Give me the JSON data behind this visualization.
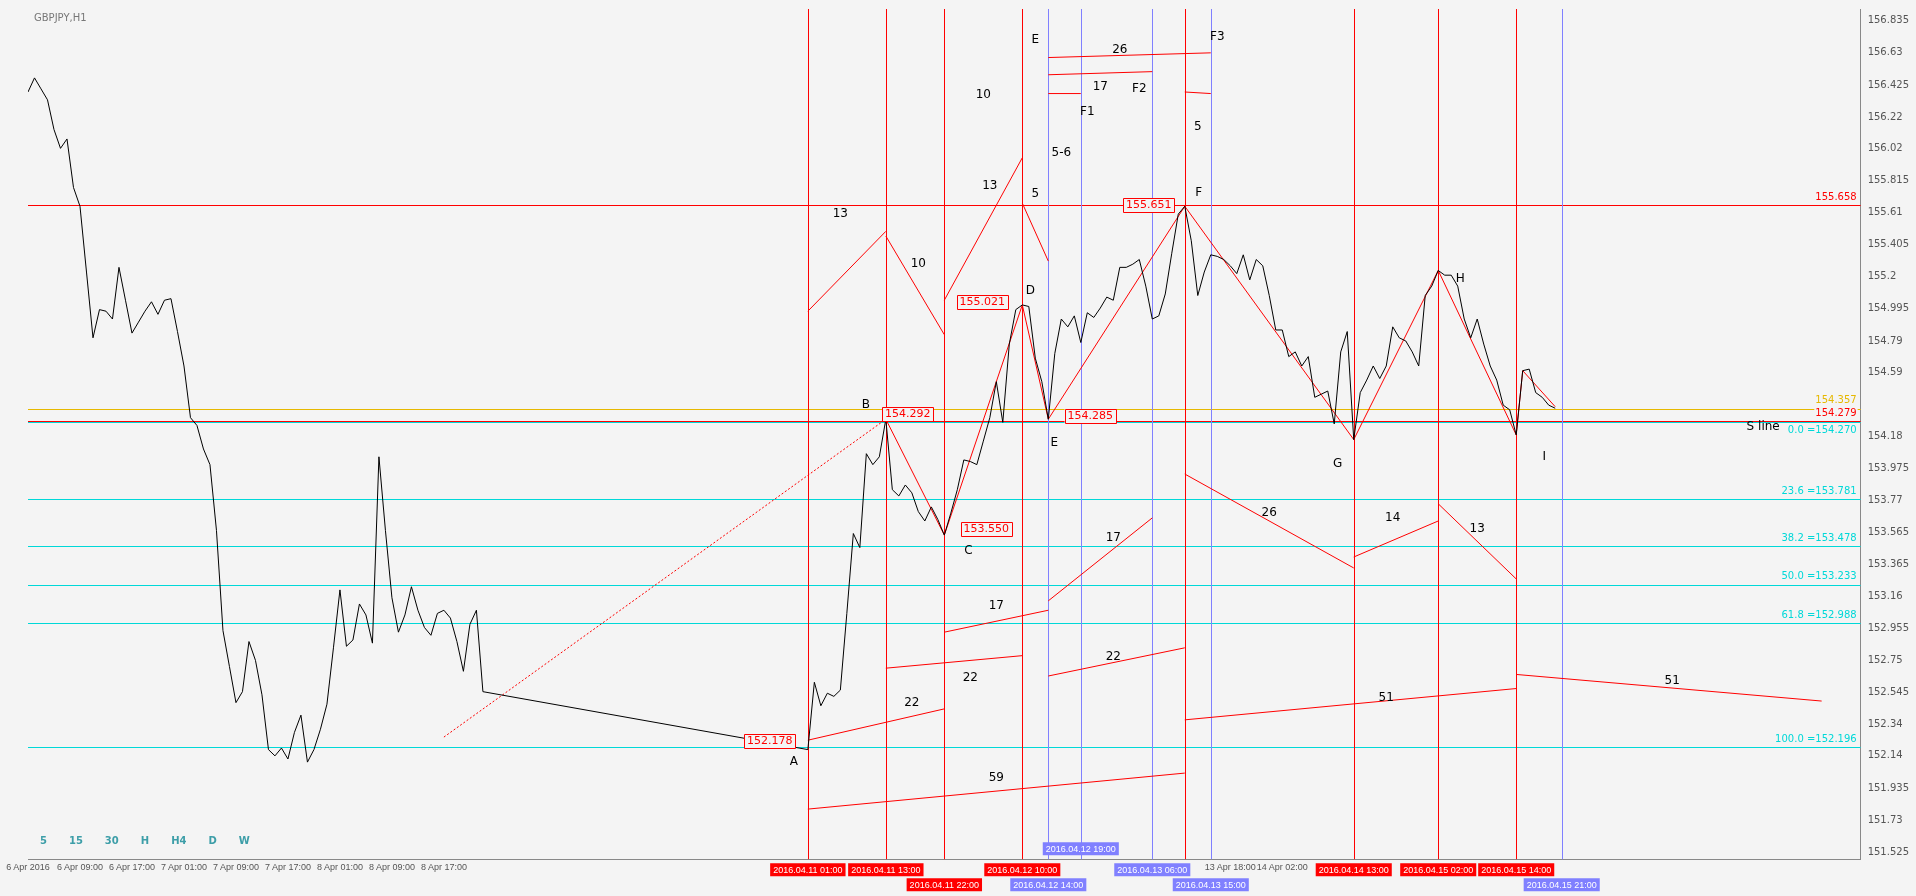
{
  "chart_data": {
    "type": "line",
    "title": "GBPJPY,H1",
    "grid": false,
    "legend": false,
    "xlim": [
      "2016-04-06T01:00",
      "2016-04-17T19:00"
    ],
    "ylim": [
      151.48,
      156.91
    ],
    "xticks": [
      {
        "value": "2016-04-06T01:00",
        "label": "6 Apr 2016"
      },
      {
        "value": "2016-04-06T09:00",
        "label": "6 Apr 09:00"
      },
      {
        "value": "2016-04-06T17:00",
        "label": "6 Apr 17:00"
      },
      {
        "value": "2016-04-07T01:00",
        "label": "7 Apr 01:00"
      },
      {
        "value": "2016-04-07T09:00",
        "label": "7 Apr 09:00"
      },
      {
        "value": "2016-04-07T17:00",
        "label": "7 Apr 17:00"
      },
      {
        "value": "2016-04-08T01:00",
        "label": "8 Apr 01:00"
      },
      {
        "value": "2016-04-08T09:00",
        "label": "8 Apr 09:00"
      },
      {
        "value": "2016-04-08T17:00",
        "label": "8 Apr 17:00"
      },
      {
        "value": "2016-04-13T18:00",
        "label": "13 Apr 18:00"
      },
      {
        "value": "2016-04-14T02:00",
        "label": "14 Apr 02:00"
      }
    ],
    "yticks": [
      156.835,
      156.63,
      156.425,
      156.22,
      156.02,
      155.815,
      155.61,
      155.405,
      155.2,
      154.995,
      154.79,
      154.59,
      154.18,
      153.975,
      153.77,
      153.565,
      153.365,
      153.16,
      152.955,
      152.75,
      152.545,
      152.34,
      152.14,
      151.935,
      151.73,
      151.525
    ],
    "x": [
      "2016-04-06T01:00",
      "2016-04-06T02:00",
      "2016-04-06T03:00",
      "2016-04-06T04:00",
      "2016-04-06T05:00",
      "2016-04-06T06:00",
      "2016-04-06T07:00",
      "2016-04-06T08:00",
      "2016-04-06T09:00",
      "2016-04-06T10:00",
      "2016-04-06T11:00",
      "2016-04-06T12:00",
      "2016-04-06T13:00",
      "2016-04-06T14:00",
      "2016-04-06T15:00",
      "2016-04-06T16:00",
      "2016-04-06T17:00",
      "2016-04-06T18:00",
      "2016-04-06T19:00",
      "2016-04-06T20:00",
      "2016-04-06T21:00",
      "2016-04-06T22:00",
      "2016-04-06T23:00",
      "2016-04-07T00:00",
      "2016-04-07T01:00",
      "2016-04-07T02:00",
      "2016-04-07T03:00",
      "2016-04-07T04:00",
      "2016-04-07T05:00",
      "2016-04-07T06:00",
      "2016-04-07T07:00",
      "2016-04-07T08:00",
      "2016-04-07T09:00",
      "2016-04-07T10:00",
      "2016-04-07T11:00",
      "2016-04-07T12:00",
      "2016-04-07T13:00",
      "2016-04-07T14:00",
      "2016-04-07T15:00",
      "2016-04-07T16:00",
      "2016-04-07T17:00",
      "2016-04-07T18:00",
      "2016-04-07T19:00",
      "2016-04-07T20:00",
      "2016-04-07T21:00",
      "2016-04-07T22:00",
      "2016-04-07T23:00",
      "2016-04-08T00:00",
      "2016-04-08T01:00",
      "2016-04-08T02:00",
      "2016-04-08T03:00",
      "2016-04-08T04:00",
      "2016-04-08T05:00",
      "2016-04-08T06:00",
      "2016-04-08T07:00",
      "2016-04-08T08:00",
      "2016-04-08T09:00",
      "2016-04-08T10:00",
      "2016-04-08T11:00",
      "2016-04-08T12:00",
      "2016-04-08T13:00",
      "2016-04-08T14:00",
      "2016-04-08T15:00",
      "2016-04-08T16:00",
      "2016-04-08T17:00",
      "2016-04-08T18:00",
      "2016-04-08T19:00",
      "2016-04-08T20:00",
      "2016-04-08T21:00",
      "2016-04-08T22:00",
      "2016-04-08T23:00",
      "2016-04-11T01:00",
      "2016-04-11T02:00",
      "2016-04-11T03:00",
      "2016-04-11T04:00",
      "2016-04-11T05:00",
      "2016-04-11T06:00",
      "2016-04-11T07:00",
      "2016-04-11T08:00",
      "2016-04-11T09:00",
      "2016-04-11T10:00",
      "2016-04-11T11:00",
      "2016-04-11T12:00",
      "2016-04-11T13:00",
      "2016-04-11T14:00",
      "2016-04-11T15:00",
      "2016-04-11T16:00",
      "2016-04-11T17:00",
      "2016-04-11T18:00",
      "2016-04-11T19:00",
      "2016-04-11T20:00",
      "2016-04-11T21:00",
      "2016-04-11T22:00",
      "2016-04-11T23:00",
      "2016-04-12T00:00",
      "2016-04-12T01:00",
      "2016-04-12T02:00",
      "2016-04-12T03:00",
      "2016-04-12T04:00",
      "2016-04-12T05:00",
      "2016-04-12T06:00",
      "2016-04-12T07:00",
      "2016-04-12T08:00",
      "2016-04-12T09:00",
      "2016-04-12T10:00",
      "2016-04-12T11:00",
      "2016-04-12T12:00",
      "2016-04-12T13:00",
      "2016-04-12T14:00",
      "2016-04-12T15:00",
      "2016-04-12T16:00",
      "2016-04-12T17:00",
      "2016-04-12T18:00",
      "2016-04-12T19:00",
      "2016-04-12T20:00",
      "2016-04-12T21:00",
      "2016-04-12T22:00",
      "2016-04-12T23:00",
      "2016-04-13T00:00",
      "2016-04-13T01:00",
      "2016-04-13T02:00",
      "2016-04-13T03:00",
      "2016-04-13T04:00",
      "2016-04-13T05:00",
      "2016-04-13T06:00",
      "2016-04-13T07:00",
      "2016-04-13T08:00",
      "2016-04-13T09:00",
      "2016-04-13T10:00",
      "2016-04-13T11:00",
      "2016-04-13T12:00",
      "2016-04-13T13:00",
      "2016-04-13T14:00",
      "2016-04-13T15:00",
      "2016-04-13T16:00",
      "2016-04-13T17:00",
      "2016-04-13T18:00",
      "2016-04-13T19:00",
      "2016-04-13T20:00",
      "2016-04-13T21:00",
      "2016-04-13T22:00",
      "2016-04-13T23:00",
      "2016-04-14T00:00",
      "2016-04-14T01:00",
      "2016-04-14T02:00",
      "2016-04-14T03:00",
      "2016-04-14T04:00",
      "2016-04-14T05:00",
      "2016-04-14T06:00",
      "2016-04-14T07:00",
      "2016-04-14T08:00",
      "2016-04-14T09:00",
      "2016-04-14T10:00",
      "2016-04-14T11:00",
      "2016-04-14T12:00",
      "2016-04-14T13:00",
      "2016-04-14T14:00",
      "2016-04-14T15:00",
      "2016-04-14T16:00",
      "2016-04-14T17:00",
      "2016-04-14T18:00",
      "2016-04-14T19:00",
      "2016-04-14T20:00",
      "2016-04-14T21:00",
      "2016-04-14T22:00",
      "2016-04-14T23:00",
      "2016-04-15T00:00",
      "2016-04-15T01:00",
      "2016-04-15T02:00",
      "2016-04-15T03:00",
      "2016-04-15T04:00",
      "2016-04-15T05:00",
      "2016-04-15T06:00",
      "2016-04-15T07:00",
      "2016-04-15T08:00",
      "2016-04-15T09:00",
      "2016-04-15T10:00",
      "2016-04-15T11:00",
      "2016-04-15T12:00",
      "2016-04-15T13:00",
      "2016-04-15T14:00",
      "2016-04-15T15:00",
      "2016-04-15T16:00",
      "2016-04-15T17:00",
      "2016-04-15T18:00",
      "2016-04-15T19:00",
      "2016-04-15T20:00"
    ],
    "series": [
      {
        "color": "#000000",
        "values": [
          156.38,
          156.47,
          156.4,
          156.33,
          156.14,
          156.02,
          156.08,
          155.77,
          155.65,
          155.23,
          154.81,
          154.99,
          154.98,
          154.93,
          155.26,
          155.05,
          154.84,
          154.91,
          154.98,
          155.04,
          154.96,
          155.05,
          155.06,
          154.85,
          154.63,
          154.3,
          154.25,
          154.1,
          154.0,
          153.58,
          152.94,
          152.71,
          152.48,
          152.55,
          152.87,
          152.75,
          152.53,
          152.18,
          152.14,
          152.19,
          152.12,
          152.29,
          152.4,
          152.1,
          152.18,
          152.31,
          152.47,
          152.83,
          153.2,
          152.84,
          152.88,
          153.11,
          153.04,
          152.86,
          154.05,
          153.58,
          153.15,
          152.93,
          153.04,
          153.22,
          153.07,
          152.96,
          152.91,
          153.05,
          153.07,
          153.02,
          152.87,
          152.68,
          152.98,
          153.07,
          152.55,
          152.18,
          152.61,
          152.46,
          152.54,
          152.52,
          152.56,
          153.05,
          153.56,
          153.47,
          154.07,
          154.0,
          154.05,
          154.29,
          153.84,
          153.8,
          153.87,
          153.82,
          153.7,
          153.64,
          153.73,
          153.65,
          153.55,
          153.69,
          153.84,
          154.03,
          154.02,
          154.0,
          154.15,
          154.3,
          154.53,
          154.27,
          154.77,
          154.99,
          155.02,
          155.01,
          154.68,
          154.53,
          154.29,
          154.71,
          154.93,
          154.88,
          154.95,
          154.78,
          154.97,
          154.94,
          155.0,
          155.07,
          155.05,
          155.26,
          155.26,
          155.28,
          155.31,
          155.14,
          154.93,
          154.95,
          155.09,
          155.35,
          155.6,
          155.65,
          155.43,
          155.08,
          155.23,
          155.34,
          155.33,
          155.31,
          155.27,
          155.22,
          155.34,
          155.18,
          155.31,
          155.27,
          155.08,
          154.86,
          154.86,
          154.69,
          154.72,
          154.63,
          154.69,
          154.43,
          154.45,
          154.47,
          154.26,
          154.72,
          154.85,
          154.16,
          154.46,
          154.54,
          154.63,
          154.55,
          154.63,
          154.88,
          154.81,
          154.79,
          154.72,
          154.63,
          155.08,
          155.14,
          155.24,
          155.21,
          155.21,
          155.14,
          154.93,
          154.81,
          154.93,
          154.77,
          154.63,
          154.54,
          154.38,
          154.35,
          154.19,
          154.6,
          154.61,
          154.46,
          154.43,
          154.38,
          154.36
        ]
      },
      {
        "color": "#ff0000",
        "x": [
          "2016-04-11T13:00",
          "2016-04-11T22:00",
          "2016-04-12T10:00",
          "2016-04-12T14:00",
          "2016-04-13T11:00",
          "2016-04-14T13:00",
          "2016-04-15T02:00",
          "2016-04-15T14:00",
          "2016-04-15T15:00",
          "2016-04-15T20:00"
        ],
        "values": [
          154.29,
          153.55,
          155.02,
          154.29,
          155.65,
          154.16,
          155.24,
          154.19,
          154.6,
          154.37
        ]
      },
      {
        "color": "#ff0000",
        "line_style": "dotted",
        "x": [
          "2016-04-08T17:00",
          "2016-04-11T13:00"
        ],
        "values": [
          152.26,
          154.29
        ]
      },
      {
        "color": "#ff0000",
        "x": [
          "2016-04-11T01:00",
          "2016-04-11T13:00"
        ],
        "values": [
          154.98,
          155.49
        ]
      },
      {
        "color": "#ff0000",
        "x": [
          "2016-04-11T13:00",
          "2016-04-11T22:00"
        ],
        "values": [
          155.46,
          154.83
        ]
      },
      {
        "color": "#ff0000",
        "x": [
          "2016-04-11T22:00",
          "2016-04-12T10:00"
        ],
        "values": [
          155.05,
          155.96
        ]
      },
      {
        "color": "#ff0000",
        "x": [
          "2016-04-12T10:00",
          "2016-04-12T14:00"
        ],
        "values": [
          155.67,
          155.3
        ]
      },
      {
        "color": "#ff0000",
        "x": [
          "2016-04-12T14:00",
          "2016-04-13T15:00"
        ],
        "values": [
          156.6,
          156.63
        ]
      },
      {
        "color": "#ff0000",
        "x": [
          "2016-04-12T14:00",
          "2016-04-13T06:00"
        ],
        "values": [
          156.49,
          156.51
        ]
      },
      {
        "color": "#ff0000",
        "x": [
          "2016-04-12T14:00",
          "2016-04-12T19:00"
        ],
        "values": [
          156.37,
          156.37
        ]
      },
      {
        "color": "#ff0000",
        "x": [
          "2016-04-13T11:00",
          "2016-04-13T15:00"
        ],
        "values": [
          156.38,
          156.37
        ]
      },
      {
        "color": "#ff0000",
        "x": [
          "2016-04-11T01:00",
          "2016-04-11T22:00"
        ],
        "values": [
          152.24,
          152.44
        ]
      },
      {
        "color": "#ff0000",
        "x": [
          "2016-04-11T13:00",
          "2016-04-12T10:00"
        ],
        "values": [
          152.7,
          152.78
        ]
      },
      {
        "color": "#ff0000",
        "x": [
          "2016-04-11T22:00",
          "2016-04-12T14:00"
        ],
        "values": [
          152.93,
          153.07
        ]
      },
      {
        "color": "#ff0000",
        "x": [
          "2016-04-12T14:00",
          "2016-04-13T06:00"
        ],
        "values": [
          153.13,
          153.66
        ]
      },
      {
        "color": "#ff0000",
        "x": [
          "2016-04-12T14:00",
          "2016-04-13T11:00"
        ],
        "values": [
          152.65,
          152.83
        ]
      },
      {
        "color": "#ff0000",
        "x": [
          "2016-04-11T01:00",
          "2016-04-13T11:00"
        ],
        "values": [
          151.8,
          152.03
        ]
      },
      {
        "color": "#ff0000",
        "x": [
          "2016-04-13T11:00",
          "2016-04-14T13:00"
        ],
        "values": [
          153.94,
          153.34
        ]
      },
      {
        "color": "#ff0000",
        "x": [
          "2016-04-14T13:00",
          "2016-04-15T02:00"
        ],
        "values": [
          153.41,
          153.64
        ]
      },
      {
        "color": "#ff0000",
        "x": [
          "2016-04-15T02:00",
          "2016-04-15T14:00"
        ],
        "values": [
          153.75,
          153.27
        ]
      },
      {
        "color": "#ff0000",
        "x": [
          "2016-04-13T11:00",
          "2016-04-15T14:00"
        ],
        "values": [
          152.37,
          152.57
        ]
      },
      {
        "color": "#ff0000",
        "x": [
          "2016-04-15T14:00",
          "2016-04-17T13:00"
        ],
        "values": [
          152.66,
          152.49
        ]
      }
    ],
    "ref_lines": [
      {
        "axis": "y",
        "value": 155.658,
        "label": "155.658",
        "color": "#ff0000"
      },
      {
        "axis": "y",
        "value": 154.357,
        "label": "154.357",
        "color": "#e6b800"
      },
      {
        "axis": "y",
        "value": 154.279,
        "label": "154.279",
        "color": "#ff0000"
      },
      {
        "axis": "y",
        "value": 154.27,
        "label": "0.0 =154.270",
        "color": "#00d8d8"
      },
      {
        "axis": "y",
        "value": 153.781,
        "label": "23.6 =153.781",
        "color": "#00d8d8"
      },
      {
        "axis": "y",
        "value": 153.478,
        "label": "38.2 =153.478",
        "color": "#00d8d8"
      },
      {
        "axis": "y",
        "value": 153.233,
        "label": "50.0 =153.233",
        "color": "#00d8d8"
      },
      {
        "axis": "y",
        "value": 152.988,
        "label": "61.8 =152.988",
        "color": "#00d8d8"
      },
      {
        "axis": "y",
        "value": 152.196,
        "label": "100.0 =152.196",
        "color": "#00d8d8"
      },
      {
        "axis": "x",
        "value": "2016-04-11T01:00",
        "label": "2016.04.11 01:00",
        "color": "#ff0000"
      },
      {
        "axis": "x",
        "value": "2016-04-11T13:00",
        "label": "2016.04.11 13:00",
        "color": "#ff0000"
      },
      {
        "axis": "x",
        "value": "2016-04-11T22:00",
        "label": "2016.04.11 22:00",
        "color": "#ff0000"
      },
      {
        "axis": "x",
        "value": "2016-04-12T10:00",
        "label": "2016.04.12 10:00",
        "color": "#ff0000"
      },
      {
        "axis": "x",
        "value": "2016-04-12T14:00",
        "label": "2016.04.12 14:00",
        "color": "#8080ff"
      },
      {
        "axis": "x",
        "value": "2016-04-12T19:00",
        "label": "2016.04.12 19:00",
        "color": "#8080ff"
      },
      {
        "axis": "x",
        "value": "2016-04-13T06:00",
        "label": "2016.04.13 06:00",
        "color": "#8080ff"
      },
      {
        "axis": "x",
        "value": "2016-04-13T11:00",
        "label": null,
        "color": "#ff0000"
      },
      {
        "axis": "x",
        "value": "2016-04-13T15:00",
        "label": "2016.04.13 15:00",
        "color": "#8080ff"
      },
      {
        "axis": "x",
        "value": "2016-04-14T13:00",
        "label": "2016.04.14 13:00",
        "color": "#ff0000"
      },
      {
        "axis": "x",
        "value": "2016-04-15T02:00",
        "label": "2016.04.15 02:00",
        "color": "#ff0000"
      },
      {
        "axis": "x",
        "value": "2016-04-15T14:00",
        "label": "2016.04.15 14:00",
        "color": "#ff0000"
      },
      {
        "axis": "x",
        "value": "2016-04-15T21:00",
        "label": "2016.04.15 21:00",
        "color": "#8080ff"
      }
    ],
    "annotations": [
      "5",
      "15",
      "30",
      "H",
      "H4",
      "D",
      "W",
      {
        "text": "152.178",
        "x": "2016-04-11T01:00",
        "y": 152.178
      },
      {
        "text": "154.292",
        "x": "2016-04-11T13:00",
        "y": 154.292
      },
      {
        "text": "153.550",
        "x": "2016-04-11T22:00",
        "y": 153.55
      },
      {
        "text": "155.021",
        "x": "2016-04-12T10:00",
        "y": 155.021
      },
      {
        "text": "154.285",
        "x": "2016-04-12T14:00",
        "y": 154.285
      },
      {
        "text": "155.651",
        "x": "2016-04-13T11:00",
        "y": 155.651
      },
      {
        "text": "A",
        "x": "2016-04-11T01:00",
        "y": 152.18
      },
      {
        "text": "B",
        "x": "2016-04-11T13:00",
        "y": 154.29
      },
      {
        "text": "C",
        "x": "2016-04-11T22:00",
        "y": 153.55
      },
      {
        "text": "D",
        "x": "2016-04-12T10:00",
        "y": 155.02
      },
      {
        "text": "E",
        "x": "2016-04-12T14:00",
        "y": 154.29
      },
      {
        "text": "F",
        "x": "2016-04-13T11:00",
        "y": 155.65
      },
      {
        "text": "G",
        "x": "2016-04-14T13:00",
        "y": 154.16
      },
      {
        "text": "H",
        "x": "2016-04-15T02:00",
        "y": 155.24
      },
      {
        "text": "I",
        "x": "2016-04-15T14:00",
        "y": 154.19
      },
      "E",
      "F1",
      "F2",
      "F3",
      "13",
      "10",
      "10",
      "13",
      "5",
      "26",
      "17",
      "5-6",
      "5",
      "17",
      "26",
      "14",
      "13",
      "17",
      "22",
      "22",
      "22",
      "51",
      "51",
      "59",
      "S line"
    ]
  }
}
